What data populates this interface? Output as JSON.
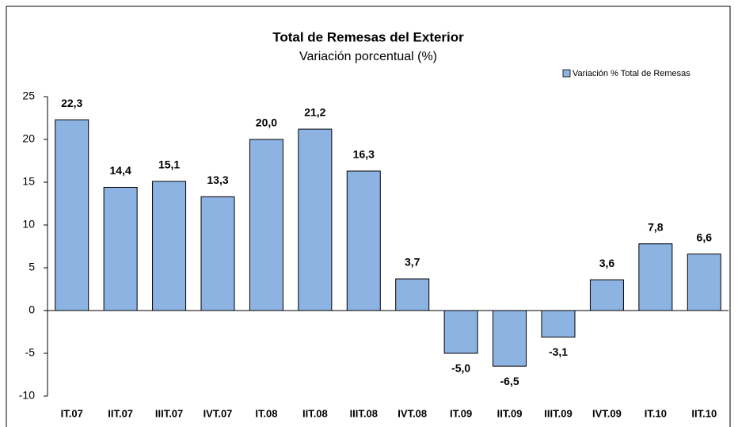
{
  "chart_data": {
    "type": "bar",
    "title": "Total de Remesas del Exterior",
    "subtitle": "Variación porcentual (%)",
    "categories": [
      "IT.07",
      "IIT.07",
      "IIIT.07",
      "IVT.07",
      "IT.08",
      "IIT.08",
      "IIIT.08",
      "IVT.08",
      "IT.09",
      "IIT.09",
      "IIIT.09",
      "IVT.09",
      "IT.10",
      "IIT.10"
    ],
    "series": [
      {
        "name": "Variación % Total de Remesas",
        "color": "#8db3e2",
        "values": [
          22.3,
          14.4,
          15.1,
          13.3,
          20.0,
          21.2,
          16.3,
          3.7,
          -5.0,
          -6.5,
          -3.1,
          3.6,
          7.8,
          6.6
        ],
        "value_labels": [
          "22,3",
          "14,4",
          "15,1",
          "13,3",
          "20,0",
          "21,2",
          "16,3",
          "3,7",
          "-5,0",
          "-6,5",
          "-3,1",
          "3,6",
          "7,8",
          "6,6"
        ]
      }
    ],
    "ylim": [
      -10,
      25
    ],
    "yticks": [
      -10,
      -5,
      0,
      5,
      10,
      15,
      20,
      25
    ],
    "legend": "top-right"
  }
}
